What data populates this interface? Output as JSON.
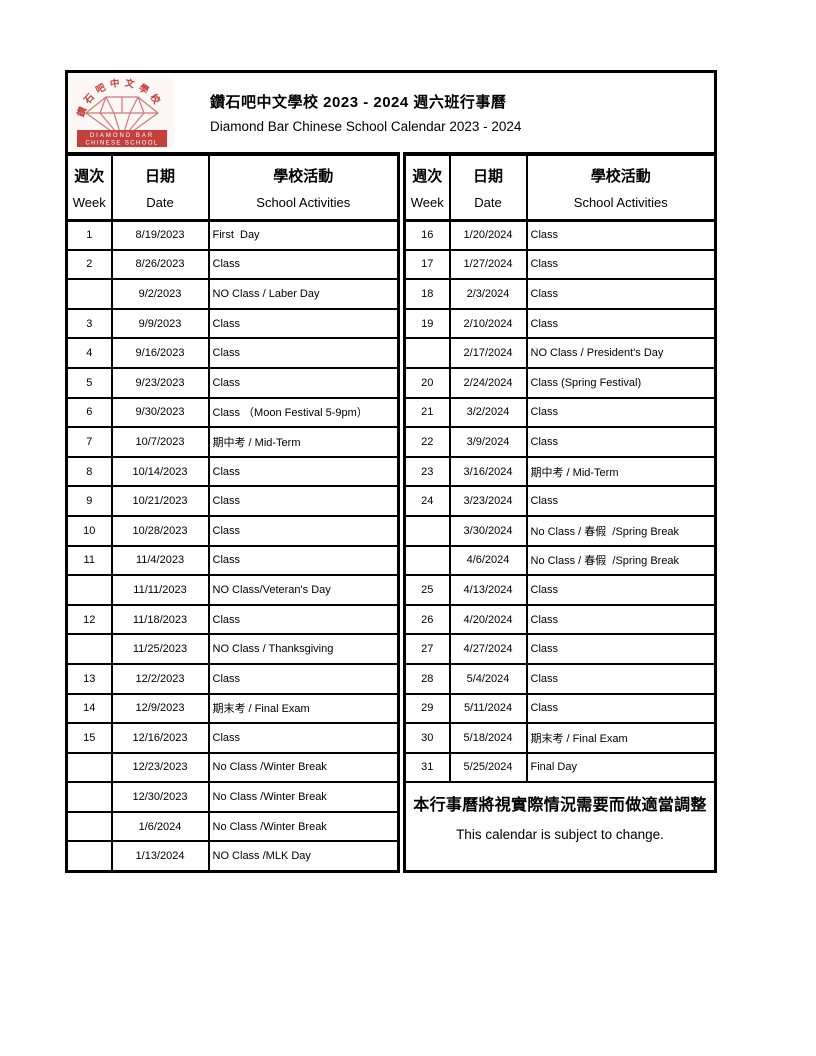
{
  "header": {
    "title_zh": "鑽石吧中文學校 2023 - 2024 週六班行事曆",
    "title_en": "Diamond Bar Chinese School Calendar 2023 - 2024"
  },
  "logo": {
    "arc_text": "鑽石吧中文學校",
    "banner_line1": "DIAMOND BAR",
    "banner_line2": "CHINESE SCHOOL",
    "red": "#c4403d"
  },
  "table_headers": {
    "week_zh": "週次",
    "week_en": "Week",
    "date_zh": "日期",
    "date_en": "Date",
    "activities_zh": "學校活動",
    "activities_en": "School Activities"
  },
  "left_rows": [
    {
      "week": "1",
      "date": "8/19/2023",
      "activity": "First  Day"
    },
    {
      "week": "2",
      "date": "8/26/2023",
      "activity": "Class"
    },
    {
      "week": "",
      "date": "9/2/2023",
      "activity": "NO Class / Laber Day"
    },
    {
      "week": "3",
      "date": "9/9/2023",
      "activity": "Class"
    },
    {
      "week": "4",
      "date": "9/16/2023",
      "activity": "Class"
    },
    {
      "week": "5",
      "date": "9/23/2023",
      "activity": "Class"
    },
    {
      "week": "6",
      "date": "9/30/2023",
      "activity": "Class （Moon Festival 5-9pm）"
    },
    {
      "week": "7",
      "date": "10/7/2023",
      "activity": "期中考 / Mid-Term"
    },
    {
      "week": "8",
      "date": "10/14/2023",
      "activity": "Class"
    },
    {
      "week": "9",
      "date": "10/21/2023",
      "activity": "Class"
    },
    {
      "week": "10",
      "date": "10/28/2023",
      "activity": "Class"
    },
    {
      "week": "11",
      "date": "11/4/2023",
      "activity": "Class"
    },
    {
      "week": "",
      "date": "11/11/2023",
      "activity": "NO Class/Veteran's Day"
    },
    {
      "week": "12",
      "date": "11/18/2023",
      "activity": "Class"
    },
    {
      "week": "",
      "date": "11/25/2023",
      "activity": "NO Class / Thanksgiving"
    },
    {
      "week": "13",
      "date": "12/2/2023",
      "activity": "Class"
    },
    {
      "week": "14",
      "date": "12/9/2023",
      "activity": "期末考 / Final Exam"
    },
    {
      "week": "15",
      "date": "12/16/2023",
      "activity": "Class"
    },
    {
      "week": "",
      "date": "12/23/2023",
      "activity": "No Class /Winter Break"
    },
    {
      "week": "",
      "date": "12/30/2023",
      "activity": "No Class /Winter Break"
    },
    {
      "week": "",
      "date": "1/6/2024",
      "activity": "No Class /Winter Break"
    },
    {
      "week": "",
      "date": "1/13/2024",
      "activity": "NO Class /MLK Day"
    }
  ],
  "right_rows": [
    {
      "week": "16",
      "date": "1/20/2024",
      "activity": "Class"
    },
    {
      "week": "17",
      "date": "1/27/2024",
      "activity": "Class"
    },
    {
      "week": "18",
      "date": "2/3/2024",
      "activity": "Class"
    },
    {
      "week": "19",
      "date": "2/10/2024",
      "activity": "Class"
    },
    {
      "week": "",
      "date": "2/17/2024",
      "activity": "NO Class / President's Day"
    },
    {
      "week": "20",
      "date": "2/24/2024",
      "activity": "Class (Spring Festival)"
    },
    {
      "week": "21",
      "date": "3/2/2024",
      "activity": "Class"
    },
    {
      "week": "22",
      "date": "3/9/2024",
      "activity": "Class"
    },
    {
      "week": "23",
      "date": "3/16/2024",
      "activity": "期中考 / Mid-Term"
    },
    {
      "week": "24",
      "date": "3/23/2024",
      "activity": "Class"
    },
    {
      "week": "",
      "date": "3/30/2024",
      "activity": "No Class / 春假  /Spring Break"
    },
    {
      "week": "",
      "date": "4/6/2024",
      "activity": "No Class / 春假  /Spring Break"
    },
    {
      "week": "25",
      "date": "4/13/2024",
      "activity": "Class"
    },
    {
      "week": "26",
      "date": "4/20/2024",
      "activity": "Class"
    },
    {
      "week": "27",
      "date": "4/27/2024",
      "activity": "Class"
    },
    {
      "week": "28",
      "date": "5/4/2024",
      "activity": "Class"
    },
    {
      "week": "29",
      "date": "5/11/2024",
      "activity": "Class"
    },
    {
      "week": "30",
      "date": "5/18/2024",
      "activity": "期末考 / Final Exam"
    },
    {
      "week": "31",
      "date": "5/25/2024",
      "activity": "Final Day"
    }
  ],
  "footer": {
    "note_zh": "本行事曆將視實際情況需要而做適當調整",
    "note_en": "This calendar is subject to change."
  }
}
